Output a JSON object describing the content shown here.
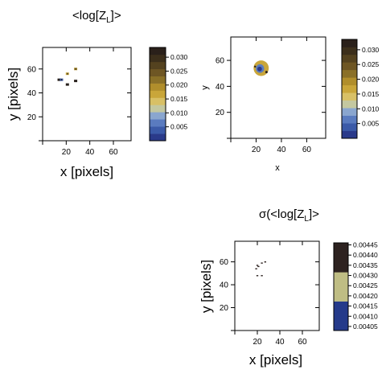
{
  "titles": {
    "mean_prefix": "<log[Z",
    "mean_sub": "L",
    "mean_suffix": "]>",
    "sigma_prefix": "σ(<log[Z",
    "sigma_sub": "L",
    "sigma_suffix": "]>"
  },
  "chart_data": [
    {
      "type": "heatmap",
      "id": "panel-1",
      "title": "<log[ZL]>",
      "xlabel": "x [pixels]",
      "ylabel": "y [pixels]",
      "xlim": [
        0,
        75
      ],
      "ylim": [
        0,
        78
      ],
      "xticks": [
        20,
        40,
        60
      ],
      "yticks": [
        20,
        40,
        60
      ],
      "colorbar": {
        "range": [
          0.0,
          0.0335
        ],
        "ticks": [
          "0.005",
          "0.010",
          "0.015",
          "0.020",
          "0.025",
          "0.030"
        ],
        "tick_values": [
          0.005,
          0.01,
          0.015,
          0.02,
          0.025,
          0.03
        ],
        "colors": [
          "#2a3a8a",
          "#3b5aa8",
          "#5a7bbf",
          "#8aa6cf",
          "#c4c8a0",
          "#d8c066",
          "#c9a63a",
          "#b08e2c",
          "#8a7028",
          "#6e5624",
          "#54421f",
          "#3c2f1b",
          "#2a201a"
        ]
      },
      "points": [
        {
          "x": 14,
          "y": 51,
          "v": 0.031
        },
        {
          "x": 16,
          "y": 51,
          "v": 0.004
        },
        {
          "x": 21,
          "y": 56,
          "v": 0.018
        },
        {
          "x": 21,
          "y": 47,
          "v": 0.031
        },
        {
          "x": 28,
          "y": 60,
          "v": 0.02
        },
        {
          "x": 28,
          "y": 50,
          "v": 0.031
        }
      ]
    },
    {
      "type": "heatmap",
      "id": "panel-2",
      "title": "",
      "xlabel": "x",
      "ylabel": "y",
      "xlim": [
        0,
        75
      ],
      "ylim": [
        0,
        78
      ],
      "xticks": [
        20,
        40,
        60
      ],
      "yticks": [
        20,
        40,
        60
      ],
      "colorbar": {
        "range": [
          0.0,
          0.0335
        ],
        "ticks": [
          "0.005",
          "0.010",
          "0.015",
          "0.020",
          "0.025",
          "0.030"
        ],
        "tick_values": [
          0.005,
          0.01,
          0.015,
          0.02,
          0.025,
          0.03
        ],
        "colors": [
          "#2a3a8a",
          "#3b5aa8",
          "#5a7bbf",
          "#8aa6cf",
          "#c4c8a0",
          "#d8c066",
          "#c9a63a",
          "#b08e2c",
          "#8a7028",
          "#6e5624",
          "#54421f",
          "#3c2f1b",
          "#2a201a"
        ]
      },
      "blob": {
        "center_x": 24,
        "center_y": 54,
        "radius_x": 6,
        "radius_y": 6
      }
    },
    {
      "type": "heatmap",
      "id": "panel-3",
      "title": "σ(<log[ZL]>)",
      "xlabel": "x [pixels]",
      "ylabel": "y [pixels]",
      "xlim": [
        0,
        75
      ],
      "ylim": [
        0,
        78
      ],
      "xticks": [
        20,
        40,
        60
      ],
      "yticks": [
        20,
        40,
        60
      ],
      "colorbar": {
        "range": [
          0.00403,
          0.00446
        ],
        "ticks": [
          "0.00405",
          "0.00410",
          "0.00415",
          "0.00420",
          "0.00425",
          "0.00430",
          "0.00435",
          "0.00440",
          "0.00445"
        ],
        "tick_values": [
          0.00405,
          0.0041,
          0.00415,
          0.0042,
          0.00425,
          0.0043,
          0.00435,
          0.0044,
          0.00445
        ],
        "colors": [
          "#253a8a",
          "#bfbd84",
          "#2d2220"
        ]
      },
      "points": [
        {
          "x": 19,
          "y": 54,
          "v": 0.00444
        },
        {
          "x": 20,
          "y": 57,
          "v": 0.00444
        },
        {
          "x": 24,
          "y": 59,
          "v": 0.00444
        },
        {
          "x": 27,
          "y": 60,
          "v": 0.00444
        },
        {
          "x": 20,
          "y": 48,
          "v": 0.00444
        },
        {
          "x": 24,
          "y": 48,
          "v": 0.00444
        },
        {
          "x": 21,
          "y": 56,
          "v": 0.00444
        }
      ]
    }
  ]
}
